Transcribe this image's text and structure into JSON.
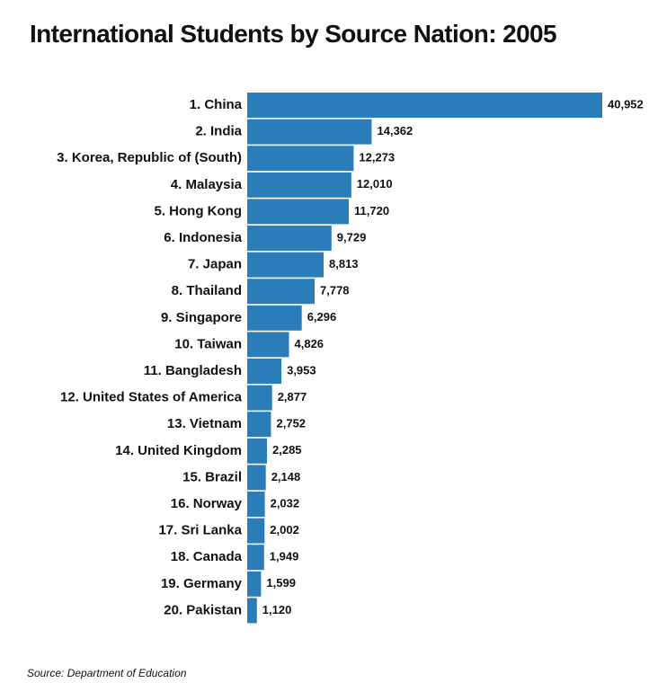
{
  "chart_data": {
    "type": "bar",
    "orientation": "horizontal",
    "title": "International Students by Source Nation: 2005",
    "categories": [
      "1. China",
      "2. India",
      "3. Korea, Republic of (South)",
      "4. Malaysia",
      "5. Hong Kong",
      "6. Indonesia",
      "7. Japan",
      "8. Thailand",
      "9. Singapore",
      "10. Taiwan",
      "11. Bangladesh",
      "12. United States of America",
      "13. Vietnam",
      "14. United Kingdom",
      "15. Brazil",
      "16. Norway",
      "17. Sri Lanka",
      "18. Canada",
      "19. Germany",
      "20. Pakistan"
    ],
    "values": [
      40952,
      14362,
      12273,
      12010,
      11720,
      9729,
      8813,
      7778,
      6296,
      4826,
      3953,
      2877,
      2752,
      2285,
      2148,
      2032,
      2002,
      1949,
      1599,
      1120
    ],
    "value_labels": [
      "40,952",
      "14,362",
      "12,273",
      "12,010",
      "11,720",
      "9,729",
      "8,813",
      "7,778",
      "6,296",
      "4,826",
      "3,953",
      "2,877",
      "2,752",
      "2,285",
      "2,148",
      "2,032",
      "2,002",
      "1,949",
      "1,599",
      "1,120"
    ],
    "xlabel": "",
    "ylabel": "",
    "xlim": [
      0,
      40952
    ],
    "grid": false,
    "legend": "none",
    "bar_color": "#2a7db8",
    "source": "Source: Department of Education"
  }
}
